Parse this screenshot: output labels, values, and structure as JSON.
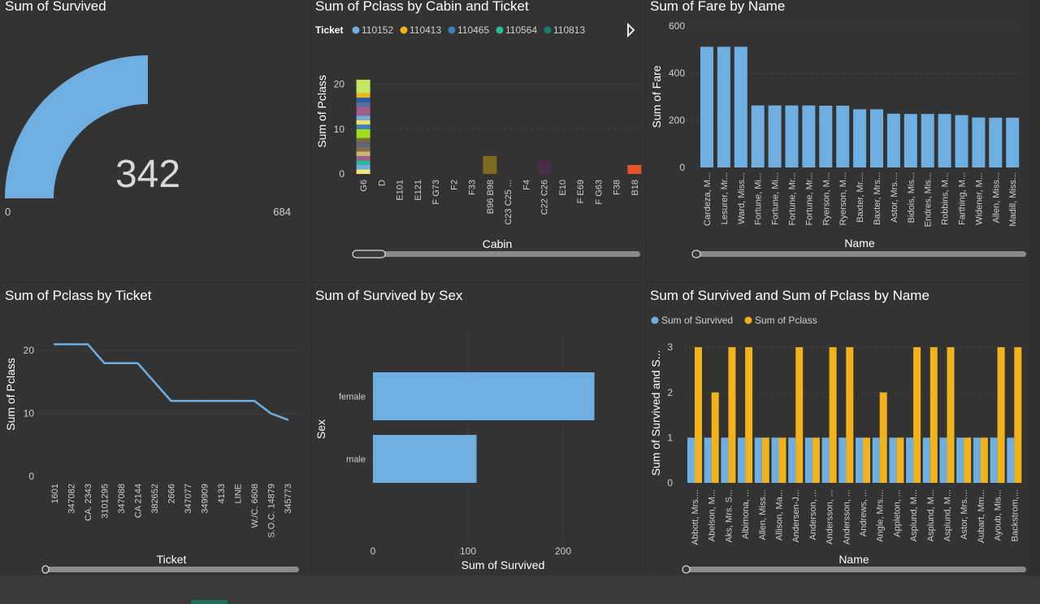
{
  "chart_data": [
    {
      "id": "gauge",
      "type": "gauge",
      "title": "Sum of Survived",
      "value": 342,
      "value_label": "342",
      "min": 0,
      "max": 684,
      "min_label": "0",
      "max_label": "684",
      "color": "#6FAEE0"
    },
    {
      "id": "cabin",
      "type": "bar",
      "title": "Sum of Pclass by Cabin and Ticket",
      "legend_title": "Ticket",
      "legend": [
        {
          "name": "110152",
          "color": "#6FAEE0"
        },
        {
          "name": "110413",
          "color": "#F2B21C"
        },
        {
          "name": "110465",
          "color": "#3D7FC1"
        },
        {
          "name": "110564",
          "color": "#2DB89A"
        },
        {
          "name": "110813",
          "color": "#157D6E"
        }
      ],
      "xlabel": "Cabin",
      "ylabel": "Sum of Pclass",
      "yticks": [
        0,
        10,
        20
      ],
      "ylim": [
        0,
        25
      ],
      "categories": [
        "G6",
        "D",
        "E101",
        "E121",
        "F G73",
        "F2",
        "F33",
        "B96 B98",
        "C23 C25 ...",
        "F4",
        "C22 C26",
        "E10",
        "F E69",
        "F G63",
        "F38",
        "B18"
      ],
      "first_stack": {
        "segments": [
          {
            "value": 1,
            "color": "#F5E27A"
          },
          {
            "value": 1,
            "color": "#6FAEE0"
          },
          {
            "value": 1,
            "color": "#2DB89A"
          },
          {
            "value": 1,
            "color": "#9E5E8C"
          },
          {
            "value": 1,
            "color": "#C8B870"
          },
          {
            "value": 1,
            "color": "#8A6D4E"
          },
          {
            "value": 1,
            "color": "#5A6A7A"
          },
          {
            "value": 1,
            "color": "#7D6A3E"
          },
          {
            "value": 2,
            "color": "#9BDC1E"
          },
          {
            "value": 1,
            "color": "#3D7FC1"
          },
          {
            "value": 1,
            "color": "#F2E06A"
          },
          {
            "value": 1,
            "color": "#6FAEE0"
          },
          {
            "value": 2,
            "color": "#9E5E8C"
          },
          {
            "value": 1,
            "color": "#5F6FA8"
          },
          {
            "value": 1,
            "color": "#2B5FA0"
          },
          {
            "value": 1,
            "color": "#F2B21C"
          },
          {
            "value": 3,
            "color": "#C4E860"
          }
        ]
      },
      "other_bars": [
        {
          "category": "B96 B98",
          "value": 4,
          "color": "#7D6A21"
        },
        {
          "category": "C22 C26",
          "value": 3,
          "color": "#4A2E45"
        },
        {
          "category": "B18",
          "value": 2,
          "color": "#E2542A"
        }
      ]
    },
    {
      "id": "fare",
      "type": "bar",
      "title": "Sum of Fare by Name",
      "xlabel": "Name",
      "ylabel": "Sum of Fare",
      "yticks": [
        0,
        200,
        400,
        600
      ],
      "ylim": [
        0,
        600
      ],
      "color": "#6FAEE0",
      "categories": [
        "Cardeza, M...",
        "Lesurer, Mr...",
        "Ward, Miss...",
        "Fortune, Mi...",
        "Fortune, Mi...",
        "Fortune, Mr...",
        "Fortune, Mr...",
        "Ryerson, M...",
        "Ryerson, M...",
        "Baxter, Mr....",
        "Baxter, Mrs...",
        "Astor, Mrs....",
        "Bidois, Mis...",
        "Endres, Mis...",
        "Robbins, M...",
        "Farthing, M...",
        "Widener, M...",
        "Allen, Miss...",
        "Madill, Miss..."
      ],
      "values": [
        512,
        512,
        512,
        263,
        263,
        263,
        263,
        262,
        262,
        247,
        247,
        228,
        227,
        227,
        227,
        222,
        212,
        211,
        211
      ]
    },
    {
      "id": "ticket",
      "type": "line",
      "title": "Sum of Pclass by Ticket",
      "xlabel": "Ticket",
      "ylabel": "Sum of Pclass",
      "yticks": [
        0,
        10,
        20
      ],
      "ylim": [
        0,
        23
      ],
      "color": "#6FAEE0",
      "categories": [
        "1601",
        "347082",
        "CA. 2343",
        "3101295",
        "347088",
        "CA 2144",
        "382652",
        "2666",
        "347077",
        "349909",
        "4133",
        "LINE",
        "W./C. 6608",
        "S.O.C. 14879",
        "345773"
      ],
      "values": [
        21,
        21,
        21,
        18,
        18,
        18,
        15,
        12,
        12,
        12,
        12,
        12,
        12,
        10,
        9
      ]
    },
    {
      "id": "sex",
      "type": "bar",
      "orientation": "horizontal",
      "title": "Sum of Survived by Sex",
      "xlabel": "Sum of Survived",
      "ylabel": "Sex",
      "xticks": [
        0,
        100,
        200
      ],
      "xlim": [
        0,
        240
      ],
      "color": "#6FAEE0",
      "categories": [
        "female",
        "male"
      ],
      "values": [
        233,
        109
      ]
    },
    {
      "id": "survpclass",
      "type": "bar",
      "title": "Sum of Survived and Sum of Pclass by Name",
      "xlabel": "Name",
      "ylabel": "Sum of Survived and S...",
      "yticks": [
        0,
        1,
        2,
        3
      ],
      "ylim": [
        0,
        3.2
      ],
      "categories": [
        "Abbott, Mrs....",
        "Abelson, M...",
        "Aks, Mrs. S...",
        "Albimona, ...",
        "Allen, Miss...",
        "Allison, Ma...",
        "Andersen-J...",
        "Anderson, ...",
        "Andersson, ...",
        "Andersson, ...",
        "Andrews, ...",
        "Angle, Mrs....",
        "Appleton, ...",
        "Asplund, M...",
        "Asplund, M...",
        "Asplund, M...",
        "Astor, Mrs....",
        "Aubart, Mm...",
        "Ayoub, Mis...",
        "Backstrom,..."
      ],
      "series": [
        {
          "name": "Sum of Survived",
          "color": "#6FAEE0",
          "values": [
            1,
            1,
            1,
            1,
            1,
            1,
            1,
            1,
            1,
            1,
            1,
            1,
            1,
            1,
            1,
            1,
            1,
            1,
            1,
            1
          ]
        },
        {
          "name": "Sum of Pclass",
          "color": "#F2B21C",
          "values": [
            3,
            2,
            3,
            3,
            1,
            1,
            3,
            1,
            3,
            3,
            1,
            2,
            1,
            3,
            3,
            3,
            1,
            1,
            3,
            3
          ]
        }
      ]
    }
  ]
}
